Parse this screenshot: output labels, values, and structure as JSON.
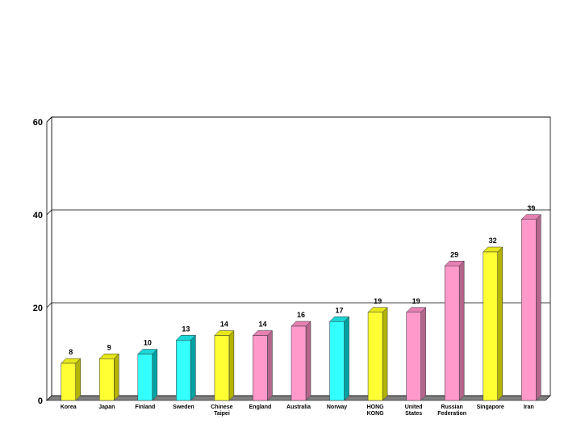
{
  "chart_data": {
    "type": "bar",
    "title": "",
    "xlabel": "",
    "ylabel": "",
    "ylim": [
      0,
      60
    ],
    "yticks": [
      0,
      20,
      40,
      60
    ],
    "grid": "horizontal",
    "bar_style": "3d",
    "categories": [
      {
        "lines": [
          "Korea"
        ],
        "value": 8,
        "color": "#ffff33",
        "side": "#b3b300",
        "top": "#e6e61a"
      },
      {
        "lines": [
          "Japan"
        ],
        "value": 9,
        "color": "#ffff33",
        "side": "#b3b300",
        "top": "#e6e61a"
      },
      {
        "lines": [
          "Finland"
        ],
        "value": 10,
        "color": "#33ffff",
        "side": "#00a3a3",
        "top": "#1ad6d6"
      },
      {
        "lines": [
          "Sweden"
        ],
        "value": 13,
        "color": "#33ffff",
        "side": "#00a3a3",
        "top": "#1ad6d6"
      },
      {
        "lines": [
          "Chinese",
          "Taipei"
        ],
        "value": 14,
        "color": "#ffff33",
        "side": "#b3b300",
        "top": "#e6e61a"
      },
      {
        "lines": [
          "England"
        ],
        "value": 14,
        "color": "#ff99cc",
        "side": "#b3668c",
        "top": "#e680b3"
      },
      {
        "lines": [
          "Australia"
        ],
        "value": 16,
        "color": "#ff99cc",
        "side": "#b3668c",
        "top": "#e680b3"
      },
      {
        "lines": [
          "Norway"
        ],
        "value": 17,
        "color": "#33ffff",
        "side": "#00a3a3",
        "top": "#1ad6d6"
      },
      {
        "lines": [
          "HONG",
          "KONG"
        ],
        "value": 19,
        "color": "#ffff33",
        "side": "#b3b300",
        "top": "#e6e61a"
      },
      {
        "lines": [
          "United",
          "States"
        ],
        "value": 19,
        "color": "#ff99cc",
        "side": "#b3668c",
        "top": "#e680b3"
      },
      {
        "lines": [
          "Russian",
          "Federation"
        ],
        "value": 29,
        "color": "#ff99cc",
        "side": "#b3668c",
        "top": "#e680b3"
      },
      {
        "lines": [
          "Singapore"
        ],
        "value": 32,
        "color": "#ffff33",
        "side": "#b3b300",
        "top": "#e6e61a"
      },
      {
        "lines": [
          "Iran"
        ],
        "value": 39,
        "color": "#ff99cc",
        "side": "#b3668c",
        "top": "#e680b3"
      }
    ]
  }
}
